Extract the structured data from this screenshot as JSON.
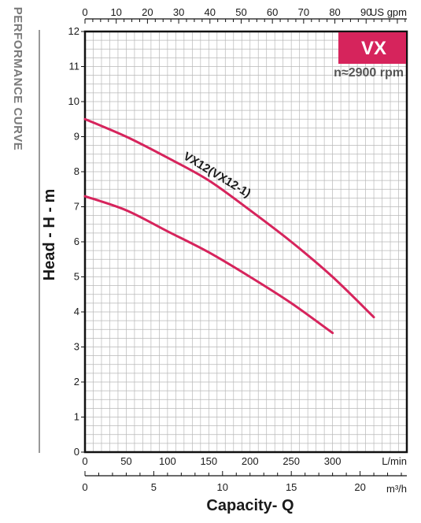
{
  "page_title": "PERFORMANCE CURVE",
  "badge": {
    "text": "VX",
    "color": "#d6245c"
  },
  "speed_label": "n≈2900 rpm",
  "colors": {
    "curve": "#d6245c",
    "grid": "#b8b8b8",
    "frame": "#111111"
  },
  "chart_data": {
    "type": "line",
    "xlabel": "Capacity- Q",
    "ylabel": "Head - H - m",
    "grid": true,
    "x_unit": "L/min",
    "xlim": [
      0,
      390
    ],
    "ylim": [
      0,
      12
    ],
    "x_ticks": [
      "0",
      "50",
      "100",
      "150",
      "200",
      "250",
      "300"
    ],
    "x_tick_values": [
      0,
      50,
      100,
      150,
      200,
      250,
      300
    ],
    "y_ticks": [
      "0",
      "1",
      "2",
      "3",
      "4",
      "5",
      "6",
      "7",
      "8",
      "9",
      "10",
      "11",
      "12"
    ],
    "y_tick_values": [
      0,
      1,
      2,
      3,
      4,
      5,
      6,
      7,
      8,
      9,
      10,
      11,
      12
    ],
    "top_axis": {
      "unit": "US gpm",
      "ticks": [
        "0",
        "10",
        "20",
        "30",
        "40",
        "50",
        "60",
        "70",
        "80",
        "90"
      ],
      "values": [
        0,
        10,
        20,
        30,
        40,
        50,
        60,
        70,
        80,
        90
      ],
      "lpm_per_unit": 3.785
    },
    "bottom_axis": {
      "unit": "m³/h",
      "ticks": [
        "0",
        "5",
        "10",
        "15",
        "20"
      ],
      "values": [
        0,
        5,
        10,
        15,
        20
      ],
      "lpm_per_unit": 16.667
    },
    "series_label": "VX12(VX12-1)",
    "series": [
      {
        "x": [
          0,
          50,
          100,
          150,
          200,
          250,
          300,
          350
        ],
        "y": [
          9.5,
          9.0,
          8.4,
          7.75,
          6.9,
          6.0,
          5.0,
          3.85
        ]
      },
      {
        "x": [
          0,
          50,
          100,
          150,
          200,
          250,
          300
        ],
        "y": [
          7.3,
          6.9,
          6.3,
          5.7,
          5.0,
          4.25,
          3.4
        ]
      }
    ]
  }
}
